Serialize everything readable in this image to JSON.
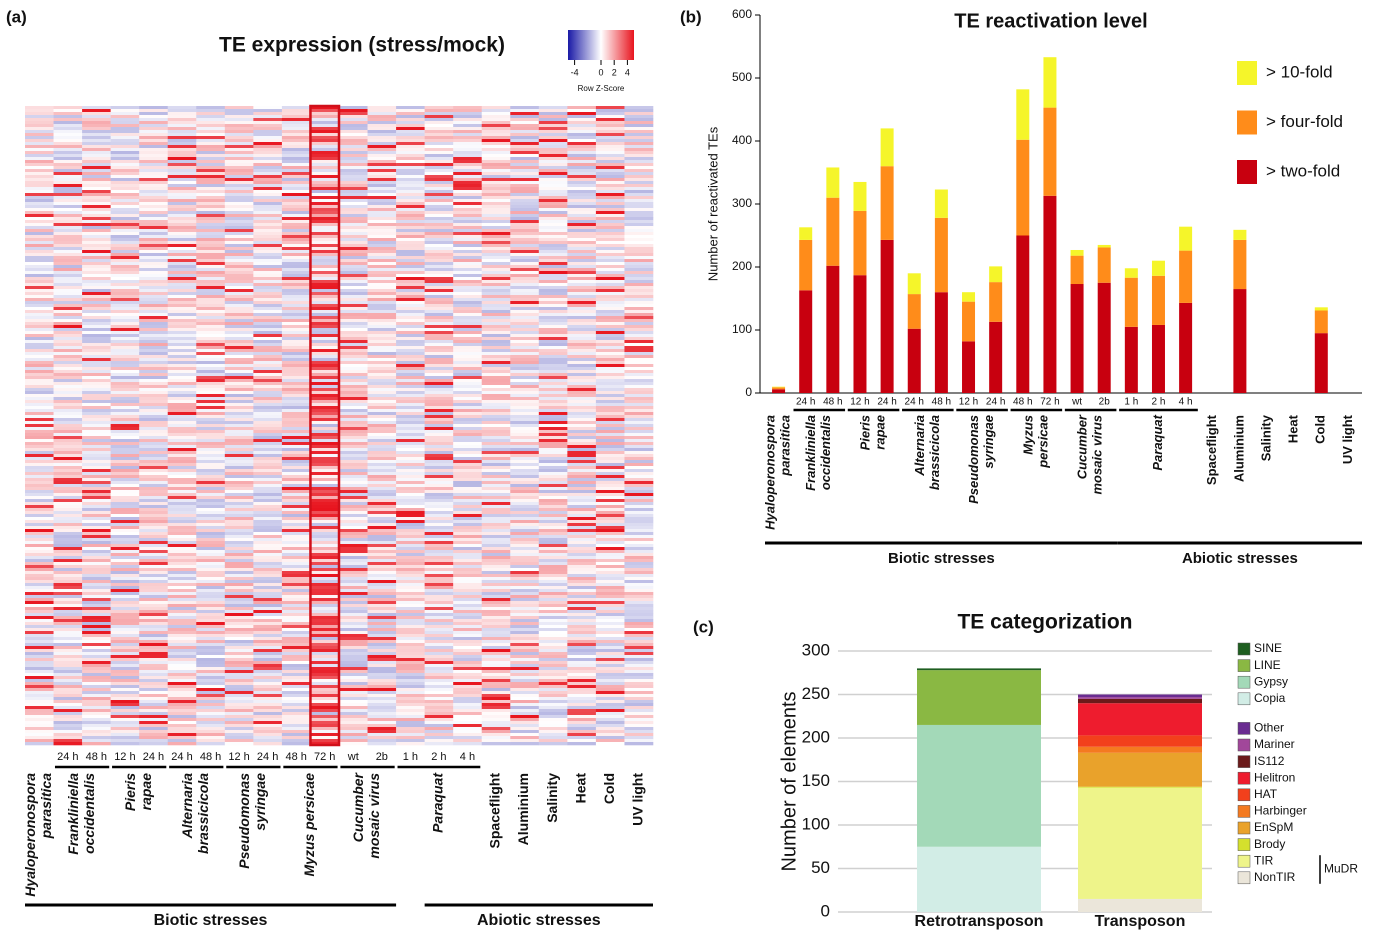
{
  "chart_data": [
    {
      "type": "heatmap",
      "panel_label": "(a)",
      "title": "TE expression (stress/mock)",
      "colorbar": {
        "label": "Row Z-Score",
        "ticks": [
          -4,
          0,
          2,
          4
        ],
        "lim": [
          -5,
          5
        ],
        "colors": [
          "#1a1aa6",
          "#ffffff",
          "#e8141e"
        ]
      },
      "highlight_column": 10,
      "highlight_color": "#d0101a",
      "categories": [
        null,
        "24 h",
        "48 h",
        "12 h",
        "24 h",
        "24 h",
        "48 h",
        "12 h",
        "24 h",
        "48 h",
        "72 h",
        "wt",
        "2b",
        "1 h",
        "2 h",
        "4 h",
        "Spaceflight",
        "Aluminium",
        "Salinity",
        "Heat",
        "Cold",
        "UV light"
      ],
      "groups": [
        {
          "lines": [
            "Hyaloperonospora",
            "parasitica"
          ],
          "span": [
            0,
            0
          ]
        },
        {
          "lines": [
            "Frankliniella",
            "occidentalis"
          ],
          "span": [
            1,
            2
          ]
        },
        {
          "lines": [
            "Pieris",
            "rapae"
          ],
          "span": [
            3,
            4
          ]
        },
        {
          "lines": [
            "Alternaria",
            "brassicicola"
          ],
          "span": [
            5,
            6
          ]
        },
        {
          "lines": [
            "Pseudomonas",
            "syringae"
          ],
          "span": [
            7,
            8
          ]
        },
        {
          "lines": [
            "Myzus persicae"
          ],
          "span": [
            9,
            10
          ]
        },
        {
          "lines": [
            "Cucumber",
            "mosaic virus"
          ],
          "span": [
            11,
            12
          ]
        },
        {
          "lines": [
            "Paraquat"
          ],
          "span": [
            13,
            15
          ]
        }
      ],
      "supergroups": [
        {
          "label": "Biotic stresses",
          "span": [
            0,
            12
          ]
        },
        {
          "label": "Abiotic stresses",
          "span": [
            14,
            21
          ]
        }
      ]
    },
    {
      "type": "bar",
      "stacked": true,
      "panel_label": "(b)",
      "title": "TE reactivation level",
      "y_label": "Number of reactivated TEs",
      "ylim": [
        0,
        600
      ],
      "yticks": [
        0,
        100,
        200,
        300,
        400,
        500,
        600
      ],
      "categories": [
        null,
        "24 h",
        "48 h",
        "12 h",
        "24 h",
        "24 h",
        "48 h",
        "12 h",
        "24 h",
        "48 h",
        "72 h",
        "wt",
        "2b",
        "1 h",
        "2 h",
        "4 h",
        "Spaceflight",
        "Aluminium",
        "Salinity",
        "Heat",
        "Cold",
        "UV light"
      ],
      "groups": [
        {
          "lines": [
            "Hyaloperonospora",
            "parasitica"
          ],
          "span": [
            0,
            0
          ]
        },
        {
          "lines": [
            "Frankliniella",
            "occidentalis"
          ],
          "span": [
            1,
            2
          ]
        },
        {
          "lines": [
            "Pieris",
            "rapae"
          ],
          "span": [
            3,
            4
          ]
        },
        {
          "lines": [
            "Alternaria",
            "brassicicola"
          ],
          "span": [
            5,
            6
          ]
        },
        {
          "lines": [
            "Pseudomonas",
            "syringae"
          ],
          "span": [
            7,
            8
          ]
        },
        {
          "lines": [
            "Myzus",
            "persicae"
          ],
          "span": [
            9,
            10
          ]
        },
        {
          "lines": [
            "Cucumber",
            "mosaic virus"
          ],
          "span": [
            11,
            12
          ]
        },
        {
          "lines": [
            "Paraquat"
          ],
          "span": [
            13,
            15
          ]
        }
      ],
      "supergroups": [
        {
          "label": "Biotic stresses",
          "span": [
            0,
            12
          ]
        },
        {
          "label": "Abiotic stresses",
          "span": [
            13,
            21
          ]
        }
      ],
      "series": [
        {
          "name": "> two-fold",
          "color": "#c8000f",
          "values": [
            6,
            163,
            202,
            187,
            243,
            102,
            160,
            82,
            113,
            250,
            313,
            173,
            175,
            105,
            108,
            143,
            0,
            165,
            0,
            0,
            95,
            0
          ]
        },
        {
          "name": "> four-fold",
          "color": "#ff8c1a",
          "values": [
            3,
            80,
            108,
            102,
            117,
            55,
            118,
            63,
            63,
            152,
            140,
            45,
            56,
            78,
            78,
            83,
            0,
            78,
            0,
            0,
            36,
            0
          ]
        },
        {
          "name": "> 10-fold",
          "color": "#f5f52a",
          "values": [
            1,
            20,
            48,
            46,
            60,
            33,
            45,
            15,
            25,
            80,
            80,
            9,
            4,
            15,
            24,
            38,
            0,
            16,
            0,
            0,
            5,
            0
          ]
        }
      ]
    },
    {
      "type": "bar",
      "stacked": true,
      "panel_label": "(c)",
      "title": "TE categorization",
      "y_label": "Number of elements",
      "ylim": [
        0,
        300
      ],
      "yticks": [
        0,
        50,
        100,
        150,
        200,
        250,
        300
      ],
      "grid": true,
      "categories": [
        "Retrotransposon",
        "Transposon"
      ],
      "series": [
        {
          "name": "Copia",
          "color": "#d2ede6",
          "values": [
            75,
            0
          ]
        },
        {
          "name": "Gypsy",
          "color": "#a3d9b8",
          "values": [
            140,
            0
          ]
        },
        {
          "name": "LINE",
          "color": "#8ab843",
          "values": [
            63,
            0
          ]
        },
        {
          "name": "SINE",
          "color": "#1e5e20",
          "values": [
            2,
            0
          ]
        },
        {
          "name": "NonTIR",
          "color": "#ebe6da",
          "values": [
            0,
            15
          ]
        },
        {
          "name": "TIR",
          "color": "#eef48a",
          "values": [
            0,
            128
          ]
        },
        {
          "name": "Brody",
          "color": "#d4e02d",
          "values": [
            0,
            1
          ]
        },
        {
          "name": "EnSpM",
          "color": "#e9a22b",
          "values": [
            0,
            39
          ]
        },
        {
          "name": "Harbinger",
          "color": "#f47a20",
          "values": [
            0,
            7
          ]
        },
        {
          "name": "HAT",
          "color": "#f2401c",
          "values": [
            0,
            13
          ]
        },
        {
          "name": "Helitron",
          "color": "#ee1c2e",
          "values": [
            0,
            37
          ]
        },
        {
          "name": "IS112",
          "color": "#6b1a1a",
          "values": [
            0,
            5
          ]
        },
        {
          "name": "Mariner",
          "color": "#a1479a",
          "values": [
            0,
            2
          ]
        },
        {
          "name": "Other",
          "color": "#6a2c91",
          "values": [
            0,
            3
          ]
        }
      ],
      "legend_groups": [
        [
          3,
          2,
          1,
          0
        ],
        [
          13,
          12,
          11,
          10,
          9,
          8,
          7,
          6,
          5,
          4
        ]
      ],
      "bracket": {
        "label": "MuDR",
        "series": [
          5,
          4
        ]
      }
    }
  ]
}
